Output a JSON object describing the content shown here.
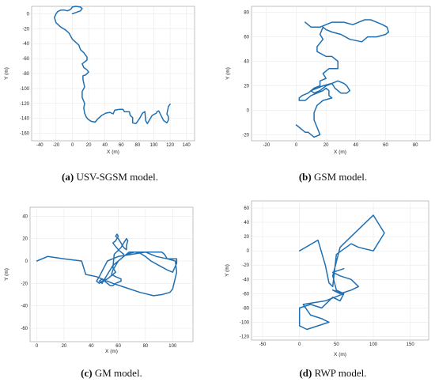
{
  "colors": {
    "line": "#1f6fb2"
  },
  "chart_data": [
    {
      "type": "line",
      "caption_letter": "(a)",
      "caption_text": " USV-SGSM model.",
      "xlabel": "X (m)",
      "ylabel": "Y (m)",
      "xlim": [
        -50,
        150
      ],
      "ylim": [
        -170,
        10
      ],
      "xticks": [
        -40,
        -20,
        0,
        20,
        40,
        60,
        80,
        100,
        120,
        140
      ],
      "yticks": [
        0,
        -20,
        -40,
        -60,
        -80,
        -100,
        -120,
        -140,
        -160
      ],
      "grid": true,
      "series": [
        {
          "x": [
            0,
            5,
            10,
            12,
            10,
            4,
            0,
            -2,
            -6,
            -10,
            -14,
            -18,
            -20,
            -22,
            -20,
            -14,
            -8,
            -4,
            0,
            4,
            8,
            10,
            14,
            18,
            18,
            12,
            14,
            18,
            20,
            16,
            13,
            13,
            15,
            12,
            12,
            15,
            14,
            15,
            17,
            19,
            23,
            28,
            31,
            36,
            41,
            46,
            50,
            52,
            58,
            62,
            64,
            67,
            70,
            71,
            74,
            74,
            78,
            82,
            86,
            89,
            90,
            92,
            98,
            103,
            104,
            106,
            112,
            116,
            118,
            118,
            116,
            118,
            120
          ],
          "y": [
            0,
            2,
            4,
            7,
            9,
            10,
            9,
            6,
            4,
            5,
            5,
            3,
            0,
            -5,
            -12,
            -18,
            -22,
            -26,
            -34,
            -38,
            -42,
            -48,
            -52,
            -58,
            -62,
            -67,
            -72,
            -75,
            -78,
            -82,
            -83,
            -88,
            -98,
            -104,
            -112,
            -120,
            -126,
            -133,
            -138,
            -141,
            -144,
            -145,
            -141,
            -136,
            -133,
            -132,
            -134,
            -129,
            -128,
            -128,
            -131,
            -131,
            -131,
            -136,
            -139,
            -146,
            -147,
            -141,
            -133,
            -131,
            -143,
            -147,
            -136,
            -133,
            -131,
            -130,
            -143,
            -146,
            -142,
            -138,
            -134,
            -124,
            -121
          ]
        }
      ]
    },
    {
      "type": "line",
      "caption_letter": "(b)",
      "caption_text": " GSM model.",
      "xlabel": "X (m)",
      "ylabel": "Y (m)",
      "xlim": [
        -30,
        90
      ],
      "ylim": [
        -25,
        85
      ],
      "xticks": [
        -20,
        0,
        20,
        40,
        60,
        80
      ],
      "yticks": [
        80,
        60,
        40,
        20,
        0,
        -20
      ],
      "grid": true,
      "series": [
        {
          "x": [
            6,
            10,
            16,
            20,
            24,
            32,
            38,
            42,
            46,
            50,
            54,
            58,
            61,
            62,
            60,
            54,
            48,
            44,
            36,
            30,
            24,
            20,
            18,
            16,
            18,
            14,
            14,
            20,
            24,
            28,
            28,
            22,
            18,
            20,
            16,
            16,
            12,
            10,
            12,
            16,
            18,
            20,
            24,
            28,
            32,
            34,
            36,
            34,
            30,
            26,
            24,
            18,
            14,
            10,
            8,
            4,
            2,
            2,
            6,
            8,
            10,
            14,
            18,
            20,
            22,
            22,
            24,
            18,
            14,
            12,
            12,
            14,
            16,
            12,
            10,
            8,
            6,
            4,
            2,
            0
          ],
          "y": [
            72,
            68,
            68,
            70,
            72,
            72,
            70,
            72,
            74,
            74,
            72,
            70,
            68,
            64,
            62,
            60,
            60,
            56,
            58,
            62,
            64,
            66,
            68,
            62,
            58,
            52,
            48,
            44,
            44,
            40,
            34,
            34,
            30,
            26,
            24,
            20,
            18,
            16,
            14,
            16,
            18,
            20,
            22,
            24,
            22,
            20,
            16,
            14,
            14,
            18,
            22,
            20,
            18,
            16,
            14,
            12,
            10,
            8,
            8,
            10,
            12,
            14,
            16,
            18,
            16,
            12,
            10,
            8,
            4,
            -2,
            -8,
            -14,
            -20,
            -22,
            -20,
            -18,
            -18,
            -16,
            -14,
            -12
          ]
        }
      ]
    },
    {
      "type": "line",
      "caption_letter": "(c)",
      "caption_text": " GM model.",
      "xlabel": "X (m)",
      "ylabel": "Y (m)",
      "xlim": [
        -5,
        115
      ],
      "ylim": [
        -72,
        48
      ],
      "xticks": [
        0,
        20,
        40,
        60,
        80,
        100
      ],
      "yticks": [
        40,
        20,
        0,
        -20,
        -40,
        -60
      ],
      "grid": true,
      "series": [
        {
          "x": [
            0,
            8,
            20,
            33,
            36,
            44,
            48,
            56,
            66,
            76,
            86,
            92,
            98,
            100,
            101,
            103,
            102,
            96,
            94,
            92,
            87,
            80,
            72,
            66,
            64,
            60,
            58,
            56,
            55,
            58,
            62,
            62,
            58,
            56,
            54,
            52,
            50,
            48,
            46,
            48,
            50,
            52,
            54,
            56,
            60,
            64,
            66,
            68,
            72,
            76,
            80,
            84,
            90,
            96,
            100,
            103,
            103,
            100,
            96,
            88,
            80,
            70,
            60,
            52,
            46,
            44,
            46,
            48,
            52,
            56,
            58,
            56,
            57,
            62,
            64,
            66,
            67,
            66,
            66,
            64,
            62,
            60,
            58,
            59,
            60,
            58,
            56,
            60,
            62,
            64
          ],
          "y": [
            0,
            4,
            2,
            0,
            -12,
            -14,
            -16,
            -20,
            -24,
            -28,
            -31,
            -30,
            -28,
            -25,
            -20,
            -10,
            0,
            2,
            6,
            8,
            8,
            8,
            8,
            6,
            4,
            0,
            -4,
            -8,
            -12,
            -14,
            -16,
            -18,
            -20,
            -22,
            -22,
            -20,
            -18,
            -16,
            -18,
            -20,
            -16,
            -12,
            -8,
            -4,
            0,
            4,
            6,
            8,
            8,
            7,
            4,
            0,
            -4,
            -8,
            -10,
            -2,
            2,
            2,
            2,
            4,
            8,
            6,
            4,
            0,
            -14,
            -18,
            -20,
            -18,
            -16,
            -12,
            -10,
            -6,
            6,
            12,
            16,
            20,
            18,
            14,
            10,
            12,
            16,
            20,
            22,
            24,
            22,
            18,
            16,
            10,
            8,
            6
          ]
        }
      ]
    },
    {
      "type": "line",
      "caption_letter": "(d)",
      "caption_text": " RWP model.",
      "xlabel": "X (m)",
      "ylabel": "Y (m)",
      "xlim": [
        -65,
        175
      ],
      "ylim": [
        -125,
        70
      ],
      "xticks": [
        -50,
        0,
        50,
        100,
        150
      ],
      "yticks": [
        60,
        40,
        20,
        0,
        -20,
        -40,
        -60,
        -80,
        -100,
        -120
      ],
      "grid": true,
      "series": [
        {
          "x": [
            0,
            25,
            35,
            40,
            45,
            50,
            70,
            80,
            100,
            115,
            100,
            80,
            65,
            55,
            45,
            50,
            60,
            55,
            45,
            30,
            15,
            0,
            0,
            10,
            40,
            30,
            15,
            5,
            35,
            60,
            45,
            55,
            70,
            80,
            70,
            55,
            45,
            60
          ],
          "y": [
            0,
            15,
            -20,
            -45,
            -50,
            -5,
            10,
            5,
            0,
            25,
            50,
            30,
            15,
            5,
            -35,
            -55,
            -60,
            -70,
            -65,
            -80,
            -75,
            -80,
            -105,
            -110,
            -100,
            -95,
            -90,
            -75,
            -70,
            -60,
            -55,
            -60,
            -55,
            -50,
            -40,
            -35,
            -30,
            -25
          ]
        }
      ]
    }
  ]
}
